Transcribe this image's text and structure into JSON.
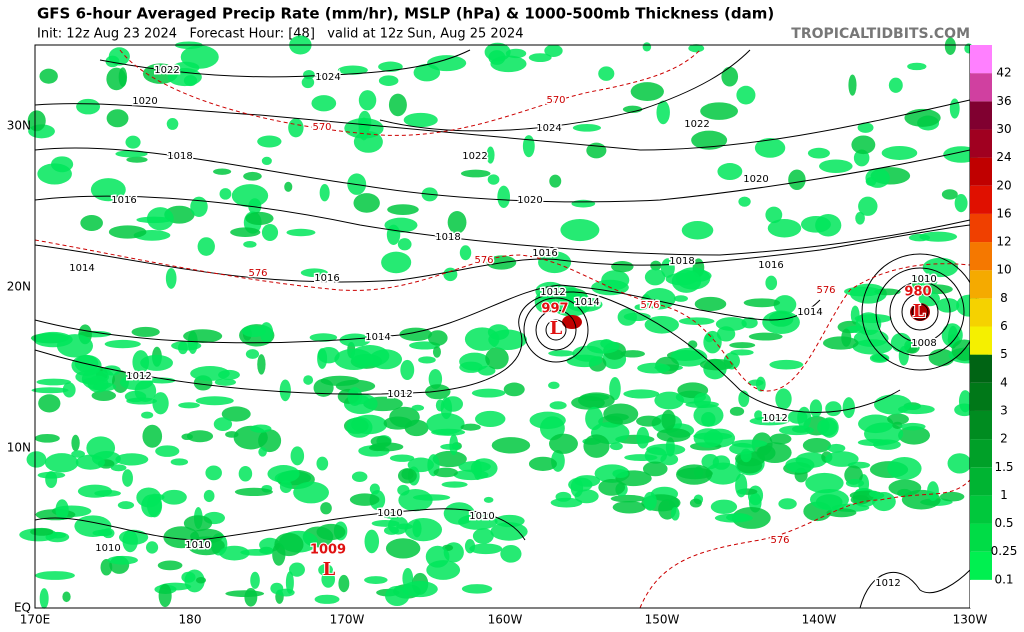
{
  "header": {
    "title": "GFS 6-hour Averaged Precip Rate (mm/hr), MSLP (hPa) & 1000-500mb Thickness (dam)",
    "subtitle": "Init: 12z Aug 23 2024   Forecast Hour: [48]   valid at 12z Sun, Aug 25 2024",
    "brand": "TROPICALTIDBITS.COM"
  },
  "axes": {
    "latitudes": [
      "30N",
      "20N",
      "10N",
      "EQ"
    ],
    "longitudes": [
      "170E",
      "180",
      "170W",
      "160W",
      "150W",
      "140W",
      "130W"
    ]
  },
  "colorbar": {
    "labels": [
      "0.1",
      "0.25",
      "0.5",
      "1",
      "1.5",
      "2",
      "3",
      "4",
      "5",
      "6",
      "8",
      "10",
      "12",
      "16",
      "20",
      "24",
      "30",
      "36",
      "42"
    ],
    "colors": [
      "#ffffff",
      "#00f050",
      "#00dc46",
      "#00c83c",
      "#00b432",
      "#00a028",
      "#008c20",
      "#007818",
      "#006414",
      "#f5f000",
      "#f5d200",
      "#f5aa00",
      "#f57800",
      "#f04000",
      "#e01000",
      "#c00000",
      "#a00020",
      "#800030",
      "#d040a0",
      "#ff80ff"
    ]
  },
  "mslp_labels": {
    "color": "#000000",
    "texts": [
      "1022",
      "1024",
      "1020",
      "1018",
      "1022",
      "1024",
      "1022",
      "1020",
      "1020",
      "1016",
      "1018",
      "1016",
      "1014",
      "1016",
      "1018",
      "1016",
      "1014",
      "1012",
      "1014",
      "1014",
      "1010",
      "1008",
      "1012",
      "1012",
      "1012",
      "1010",
      "1010",
      "1010",
      "1010",
      "1012"
    ]
  },
  "thickness_labels": {
    "color": "#cc0000",
    "texts": [
      "570",
      "570",
      "576",
      "576",
      "576",
      "576",
      "576"
    ]
  },
  "centers": [
    {
      "pressure": "997",
      "symbol": "L"
    },
    {
      "pressure": "980",
      "symbol": "L"
    },
    {
      "pressure": "1009",
      "symbol": "L"
    }
  ]
}
